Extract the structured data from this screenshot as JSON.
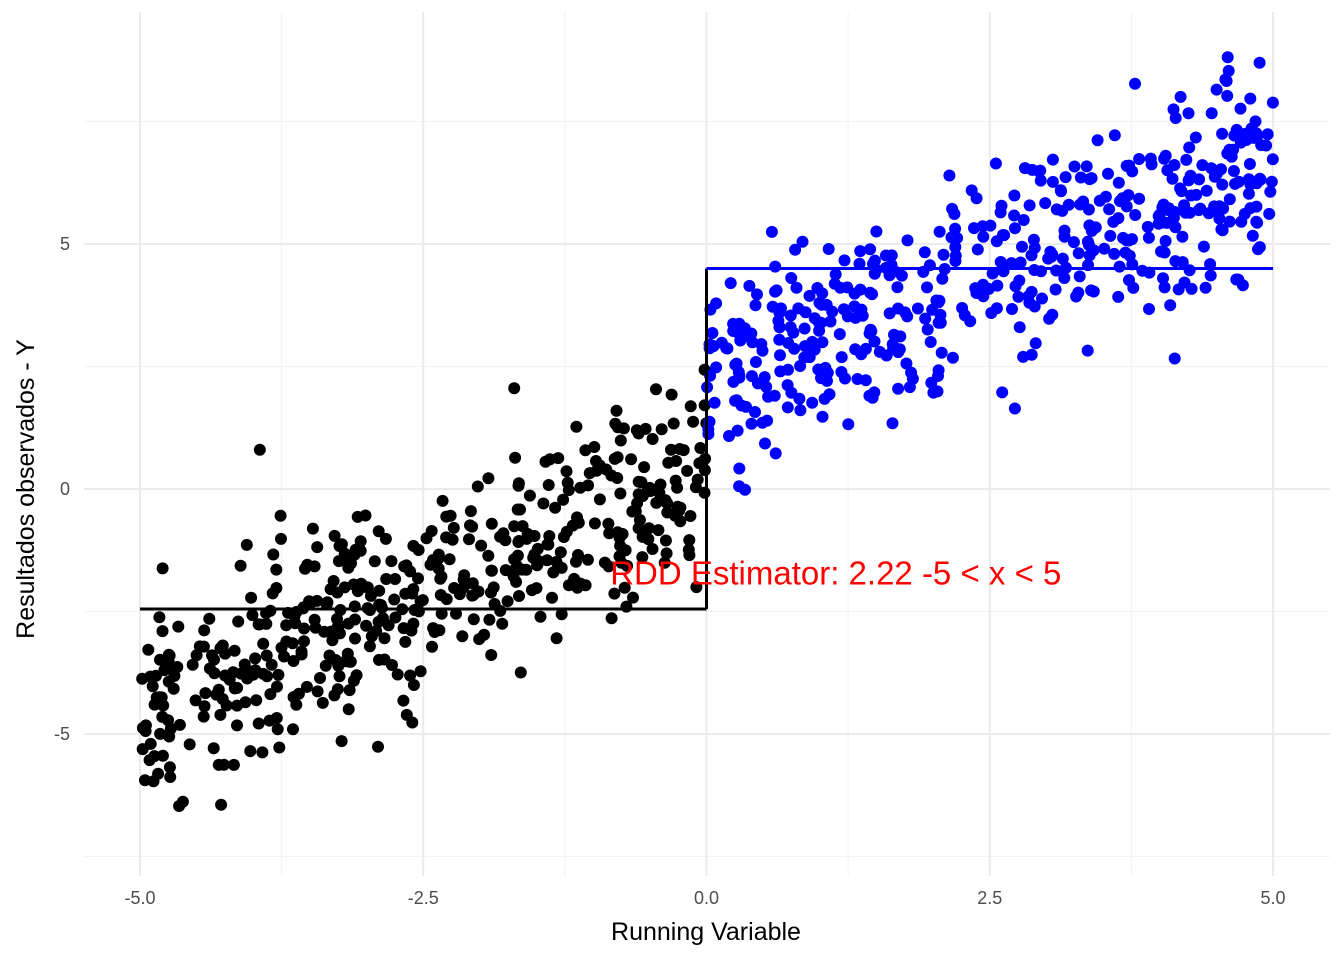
{
  "chart_data": {
    "type": "scatter",
    "title": "",
    "xlabel": "Running Variable",
    "ylabel": "Resultados observados - Y",
    "xlim": [
      -5.0,
      5.0
    ],
    "ylim": [
      -7.5,
      9.2
    ],
    "x_ticks": [
      -5.0,
      -2.5,
      0.0,
      2.5,
      5.0
    ],
    "x_tick_labels": [
      "-5.0",
      "-2.5",
      "0.0",
      "2.5",
      "5.0"
    ],
    "x_minor_ticks": [
      -3.75,
      -1.25,
      1.25,
      3.75
    ],
    "y_ticks": [
      -5,
      0,
      5
    ],
    "y_tick_labels": [
      "-5",
      "0",
      "5"
    ],
    "y_minor_ticks": [
      -7.5,
      -2.5,
      2.5,
      7.5
    ],
    "grid": true,
    "cutoff": 0.0,
    "n_points_per_side": 500,
    "series": [
      {
        "side": "left",
        "color": "#000000",
        "x_range": [
          -5.0,
          0.0
        ],
        "fit": {
          "x": [
            -5.0,
            0.0
          ],
          "y": -2.45
        }
      },
      {
        "side": "right",
        "color": "#0000ff",
        "x_range": [
          0.0,
          5.0
        ],
        "fit": {
          "x": [
            0.0,
            5.0
          ],
          "y": 4.5
        }
      }
    ],
    "annotation": {
      "text": "RDD Estimator:  2.22 -5 < x < 5",
      "x": -0.85,
      "y": -1.7,
      "color": "#ff0000"
    }
  }
}
